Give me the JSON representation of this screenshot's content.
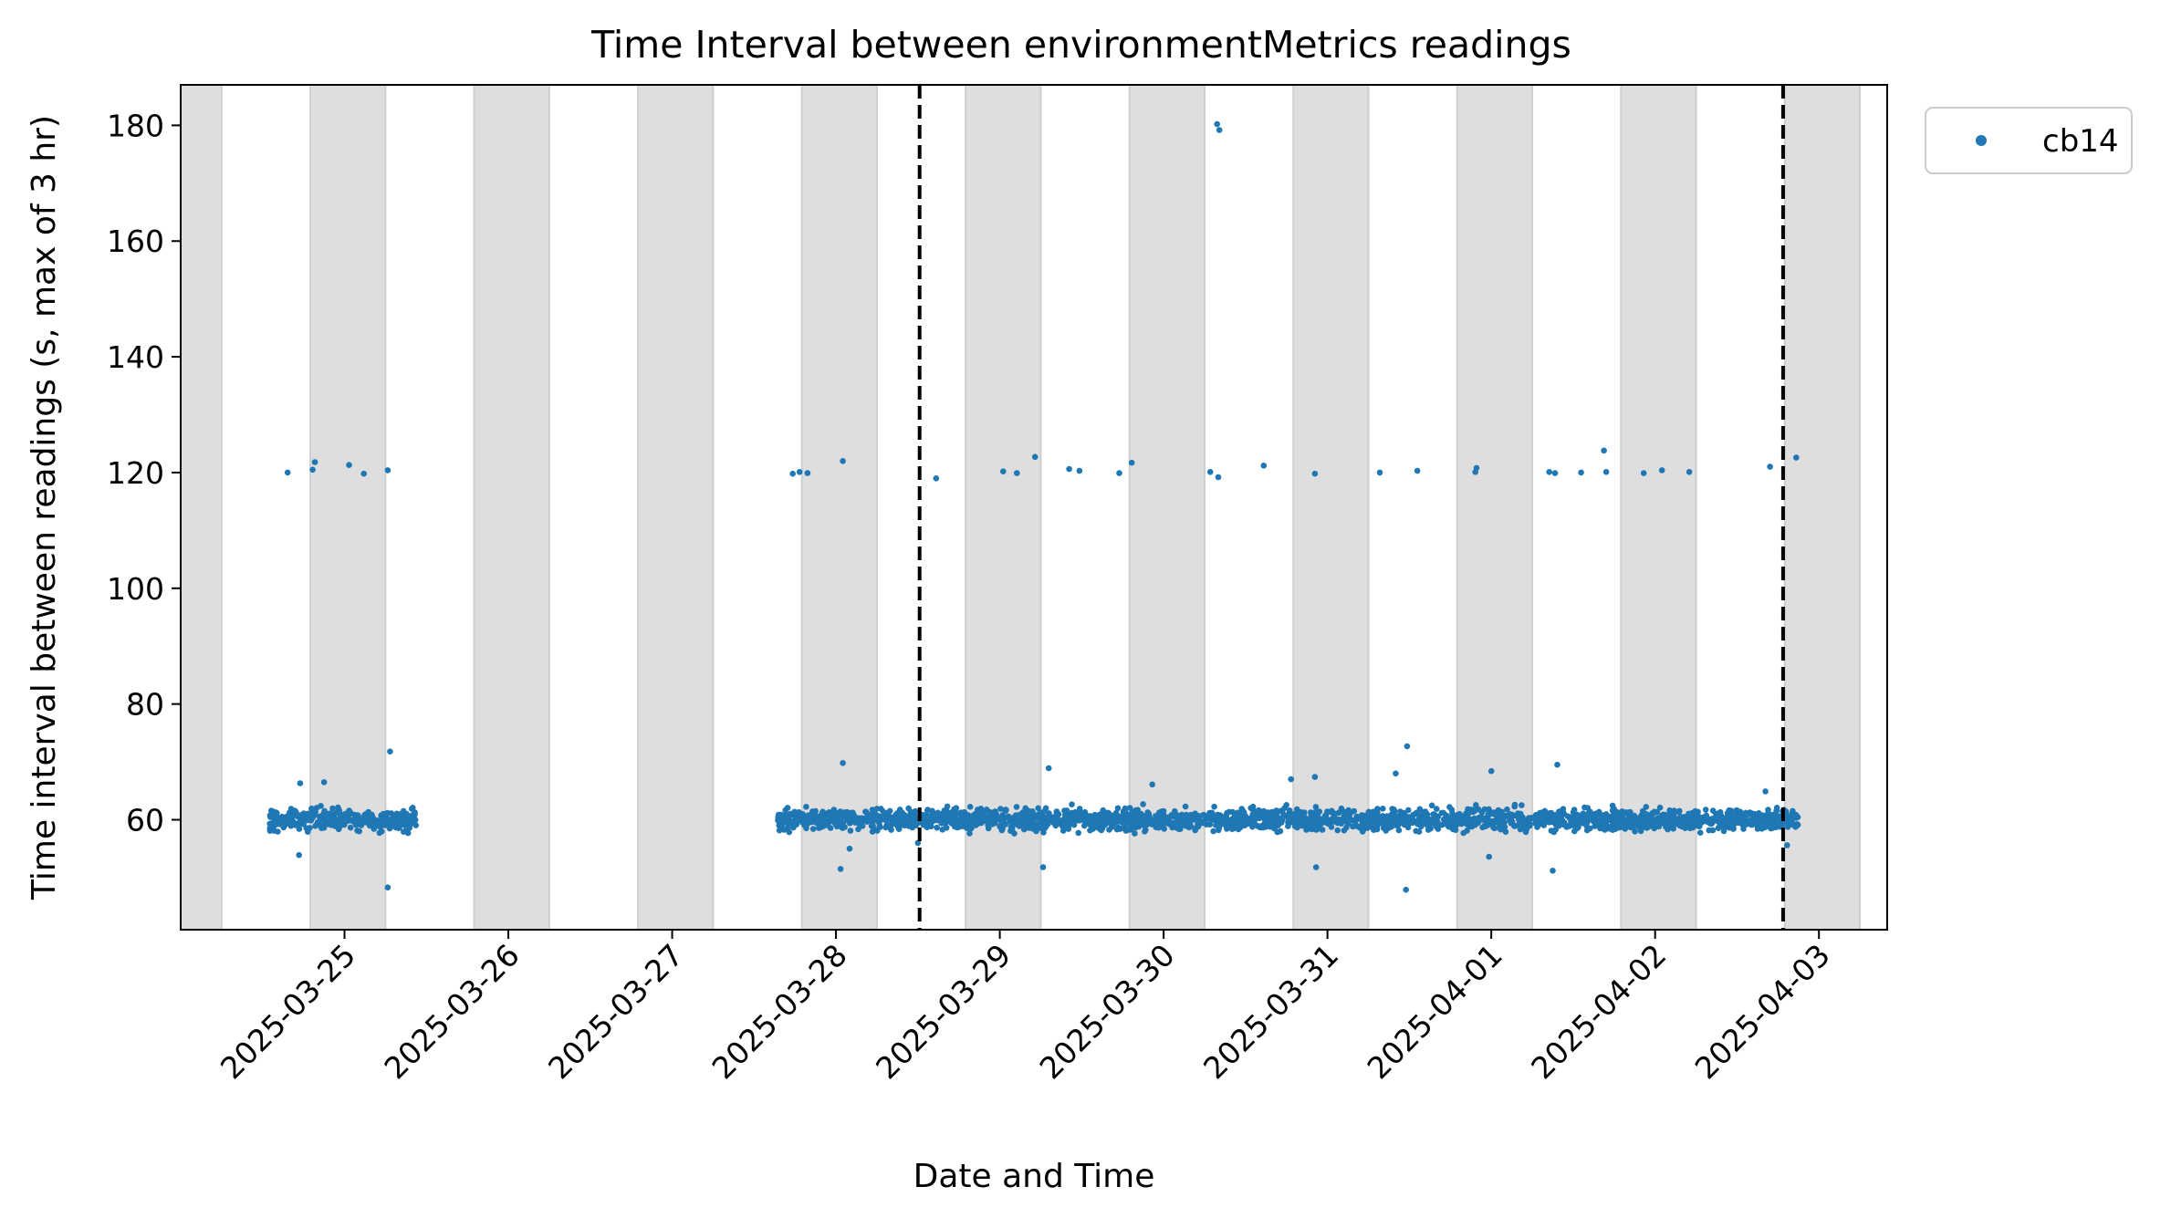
{
  "chart_data": {
    "type": "scatter",
    "title": "Time Interval between environmentMetrics readings",
    "xlabel": "Date and Time",
    "ylabel": "Time interval between readings (s, max of 3 hr)",
    "x_type": "date",
    "xlim": [
      "2025-03-24T00:00",
      "2025-04-03T10:00"
    ],
    "ylim": [
      41,
      187
    ],
    "x_tick_labels": [
      "2025-03-25",
      "2025-03-26",
      "2025-03-27",
      "2025-03-28",
      "2025-03-29",
      "2025-03-30",
      "2025-03-31",
      "2025-04-01",
      "2025-04-02",
      "2025-04-03"
    ],
    "y_ticks": [
      60,
      80,
      100,
      120,
      140,
      160,
      180
    ],
    "grid": false,
    "legend_position": "outside top-right",
    "night_shading": [
      [
        "2025-03-24T00:00",
        "2025-03-24T06:00"
      ],
      [
        "2025-03-24T19:00",
        "2025-03-25T06:00"
      ],
      [
        "2025-03-25T19:00",
        "2025-03-26T06:00"
      ],
      [
        "2025-03-26T19:00",
        "2025-03-27T06:00"
      ],
      [
        "2025-03-27T19:00",
        "2025-03-28T06:00"
      ],
      [
        "2025-03-28T19:00",
        "2025-03-29T06:00"
      ],
      [
        "2025-03-29T19:00",
        "2025-03-30T06:00"
      ],
      [
        "2025-03-30T19:00",
        "2025-03-31T06:00"
      ],
      [
        "2025-03-31T19:00",
        "2025-04-01T06:00"
      ],
      [
        "2025-04-01T19:00",
        "2025-04-02T06:00"
      ],
      [
        "2025-04-02T19:00",
        "2025-04-03T06:00"
      ]
    ],
    "vertical_lines": [
      "2025-03-28T12:15",
      "2025-04-02T18:45"
    ],
    "series": [
      {
        "name": "cb14",
        "color": "#1f77b4",
        "band": {
          "center": 60,
          "segments": [
            [
              "2025-03-24T13:00",
              "2025-03-25T10:30"
            ],
            [
              "2025-03-27T15:30",
              "2025-04-02T21:00"
            ]
          ]
        },
        "points": [
          [
            "2025-03-24T15:40",
            120.0
          ],
          [
            "2025-03-24T19:20",
            120.5
          ],
          [
            "2025-03-24T19:40",
            121.8
          ],
          [
            "2025-03-25T00:40",
            121.3
          ],
          [
            "2025-03-25T02:50",
            119.8
          ],
          [
            "2025-03-25T06:20",
            120.4
          ],
          [
            "2025-03-27T17:40",
            119.8
          ],
          [
            "2025-03-27T18:40",
            120.1
          ],
          [
            "2025-03-27T19:50",
            119.9
          ],
          [
            "2025-03-28T01:00",
            122.0
          ],
          [
            "2025-03-28T14:40",
            119.0
          ],
          [
            "2025-03-29T00:30",
            120.2
          ],
          [
            "2025-03-29T02:30",
            119.9
          ],
          [
            "2025-03-29T05:10",
            122.7
          ],
          [
            "2025-03-29T10:10",
            120.6
          ],
          [
            "2025-03-29T11:40",
            120.3
          ],
          [
            "2025-03-29T17:30",
            119.9
          ],
          [
            "2025-03-29T19:20",
            121.7
          ],
          [
            "2025-03-30T06:50",
            120.1
          ],
          [
            "2025-03-30T08:00",
            119.2
          ],
          [
            "2025-03-30T14:40",
            121.2
          ],
          [
            "2025-03-30T22:10",
            119.8
          ],
          [
            "2025-03-31T07:40",
            120.0
          ],
          [
            "2025-03-31T13:10",
            120.3
          ],
          [
            "2025-03-31T21:40",
            120.1
          ],
          [
            "2025-03-31T21:50",
            120.8
          ],
          [
            "2025-04-01T08:30",
            120.1
          ],
          [
            "2025-04-01T09:20",
            119.9
          ],
          [
            "2025-04-01T13:10",
            120.0
          ],
          [
            "2025-04-01T16:30",
            123.8
          ],
          [
            "2025-04-01T16:50",
            120.1
          ],
          [
            "2025-04-01T22:20",
            119.9
          ],
          [
            "2025-04-02T01:00",
            120.4
          ],
          [
            "2025-04-02T05:00",
            120.1
          ],
          [
            "2025-04-02T16:50",
            121.0
          ],
          [
            "2025-04-02T20:40",
            122.6
          ],
          [
            "2025-03-30T07:50",
            180.2
          ],
          [
            "2025-03-30T08:10",
            179.2
          ],
          [
            "2025-03-25T06:40",
            71.8
          ],
          [
            "2025-03-25T06:20",
            48.3
          ],
          [
            "2025-03-28T01:00",
            69.8
          ],
          [
            "2025-03-28T00:40",
            51.5
          ],
          [
            "2025-03-29T07:10",
            68.9
          ],
          [
            "2025-03-29T06:20",
            51.8
          ],
          [
            "2025-03-31T11:40",
            72.7
          ],
          [
            "2025-03-31T10:00",
            68.0
          ],
          [
            "2025-03-31T11:30",
            47.9
          ],
          [
            "2025-04-01T00:00",
            68.4
          ],
          [
            "2025-04-01T09:40",
            69.5
          ],
          [
            "2025-04-01T09:00",
            51.2
          ],
          [
            "2025-03-31T23:40",
            53.6
          ],
          [
            "2025-03-30T22:10",
            67.4
          ],
          [
            "2025-03-30T22:20",
            51.8
          ],
          [
            "2025-03-24T17:30",
            66.3
          ],
          [
            "2025-03-24T17:20",
            53.9
          ],
          [
            "2025-03-24T21:00",
            66.5
          ],
          [
            "2025-03-28T02:00",
            55.0
          ],
          [
            "2025-03-30T18:40",
            67.0
          ],
          [
            "2025-04-02T16:10",
            64.9
          ],
          [
            "2025-04-02T19:20",
            55.6
          ],
          [
            "2025-03-28T12:00",
            56.0
          ],
          [
            "2025-03-29T22:20",
            66.1
          ]
        ]
      }
    ]
  }
}
